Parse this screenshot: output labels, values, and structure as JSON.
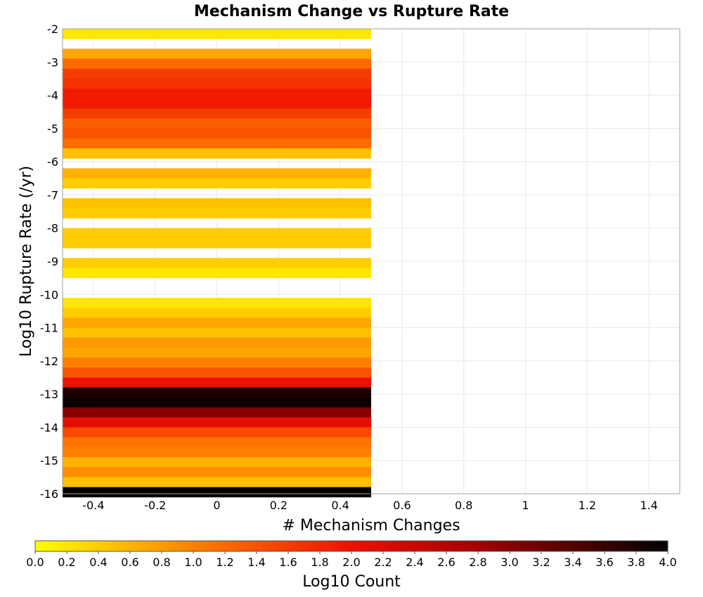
{
  "chart_data": {
    "type": "heatmap",
    "title": "Mechanism Change vs Rupture Rate",
    "xlabel": "# Mechanism Changes",
    "ylabel": "Log10 Rupture Rate (/yr)",
    "xlim": [
      -0.5,
      1.5
    ],
    "ylim": [
      -16,
      -2
    ],
    "x_ticks": [
      "-0.4",
      "-0.2",
      "0",
      "0.2",
      "0.4",
      "0.6",
      "0.8",
      "1",
      "1.2",
      "1.4"
    ],
    "x_tick_values": [
      -0.4,
      -0.2,
      0,
      0.2,
      0.4,
      0.6,
      0.8,
      1.0,
      1.2,
      1.4
    ],
    "y_ticks": [
      "-2",
      "-3",
      "-4",
      "-5",
      "-6",
      "-7",
      "-8",
      "-9",
      "-10",
      "-11",
      "-12",
      "-13",
      "-14",
      "-15",
      "-16"
    ],
    "y_tick_values": [
      -2,
      -3,
      -4,
      -5,
      -6,
      -7,
      -8,
      -9,
      -10,
      -11,
      -12,
      -13,
      -14,
      -15,
      -16
    ],
    "grid": true,
    "cell_x_range": [
      -0.5,
      0.5
    ],
    "cell_height": 0.3,
    "cells": [
      {
        "y": -2.15,
        "value": 0.2
      },
      {
        "y": -2.75,
        "value": 0.7
      },
      {
        "y": -3.05,
        "value": 1.2
      },
      {
        "y": -3.35,
        "value": 1.6
      },
      {
        "y": -3.65,
        "value": 1.7
      },
      {
        "y": -3.95,
        "value": 1.9
      },
      {
        "y": -4.25,
        "value": 1.9
      },
      {
        "y": -4.55,
        "value": 1.6
      },
      {
        "y": -4.85,
        "value": 1.3
      },
      {
        "y": -5.15,
        "value": 1.4
      },
      {
        "y": -5.45,
        "value": 1.2
      },
      {
        "y": -5.75,
        "value": 0.5
      },
      {
        "y": -6.35,
        "value": 0.6
      },
      {
        "y": -6.65,
        "value": 0.4
      },
      {
        "y": -7.25,
        "value": 0.5
      },
      {
        "y": -7.55,
        "value": 0.4
      },
      {
        "y": -8.15,
        "value": 0.4
      },
      {
        "y": -8.45,
        "value": 0.4
      },
      {
        "y": -9.05,
        "value": 0.4
      },
      {
        "y": -9.35,
        "value": 0.2
      },
      {
        "y": -10.25,
        "value": 0.2
      },
      {
        "y": -10.55,
        "value": 0.4
      },
      {
        "y": -10.85,
        "value": 0.7
      },
      {
        "y": -11.15,
        "value": 0.5
      },
      {
        "y": -11.45,
        "value": 0.8
      },
      {
        "y": -11.75,
        "value": 0.7
      },
      {
        "y": -12.05,
        "value": 1.0
      },
      {
        "y": -12.35,
        "value": 1.4
      },
      {
        "y": -12.65,
        "value": 2.0
      },
      {
        "y": -12.95,
        "value": 3.8
      },
      {
        "y": -13.25,
        "value": 3.9
      },
      {
        "y": -13.55,
        "value": 3.0
      },
      {
        "y": -13.85,
        "value": 2.1
      },
      {
        "y": -14.15,
        "value": 1.5
      },
      {
        "y": -14.45,
        "value": 1.1
      },
      {
        "y": -14.75,
        "value": 1.0
      },
      {
        "y": -15.05,
        "value": 0.6
      },
      {
        "y": -15.35,
        "value": 0.9
      },
      {
        "y": -15.65,
        "value": 0.5
      },
      {
        "y": -15.95,
        "value": 4.0
      }
    ],
    "colorbar": {
      "label": "Log10 Count",
      "range": [
        0,
        4
      ],
      "ticks": [
        "0.0",
        "0.2",
        "0.4",
        "0.6",
        "0.8",
        "1.0",
        "1.2",
        "1.4",
        "1.6",
        "1.8",
        "2.0",
        "2.2",
        "2.4",
        "2.6",
        "2.8",
        "3.0",
        "3.2",
        "3.4",
        "3.6",
        "3.8",
        "4.0"
      ],
      "tick_values": [
        0,
        0.2,
        0.4,
        0.6,
        0.8,
        1.0,
        1.2,
        1.4,
        1.6,
        1.8,
        2.0,
        2.2,
        2.4,
        2.6,
        2.8,
        3.0,
        3.2,
        3.4,
        3.6,
        3.8,
        4.0
      ],
      "colormap_values": [
        0,
        0.5,
        1.0,
        2.0,
        2.8,
        3.4,
        4.0
      ],
      "colormap_colors": [
        "#ffff00",
        "#ffc000",
        "#ff8000",
        "#ee1000",
        "#a00000",
        "#500000",
        "#000000"
      ]
    }
  }
}
